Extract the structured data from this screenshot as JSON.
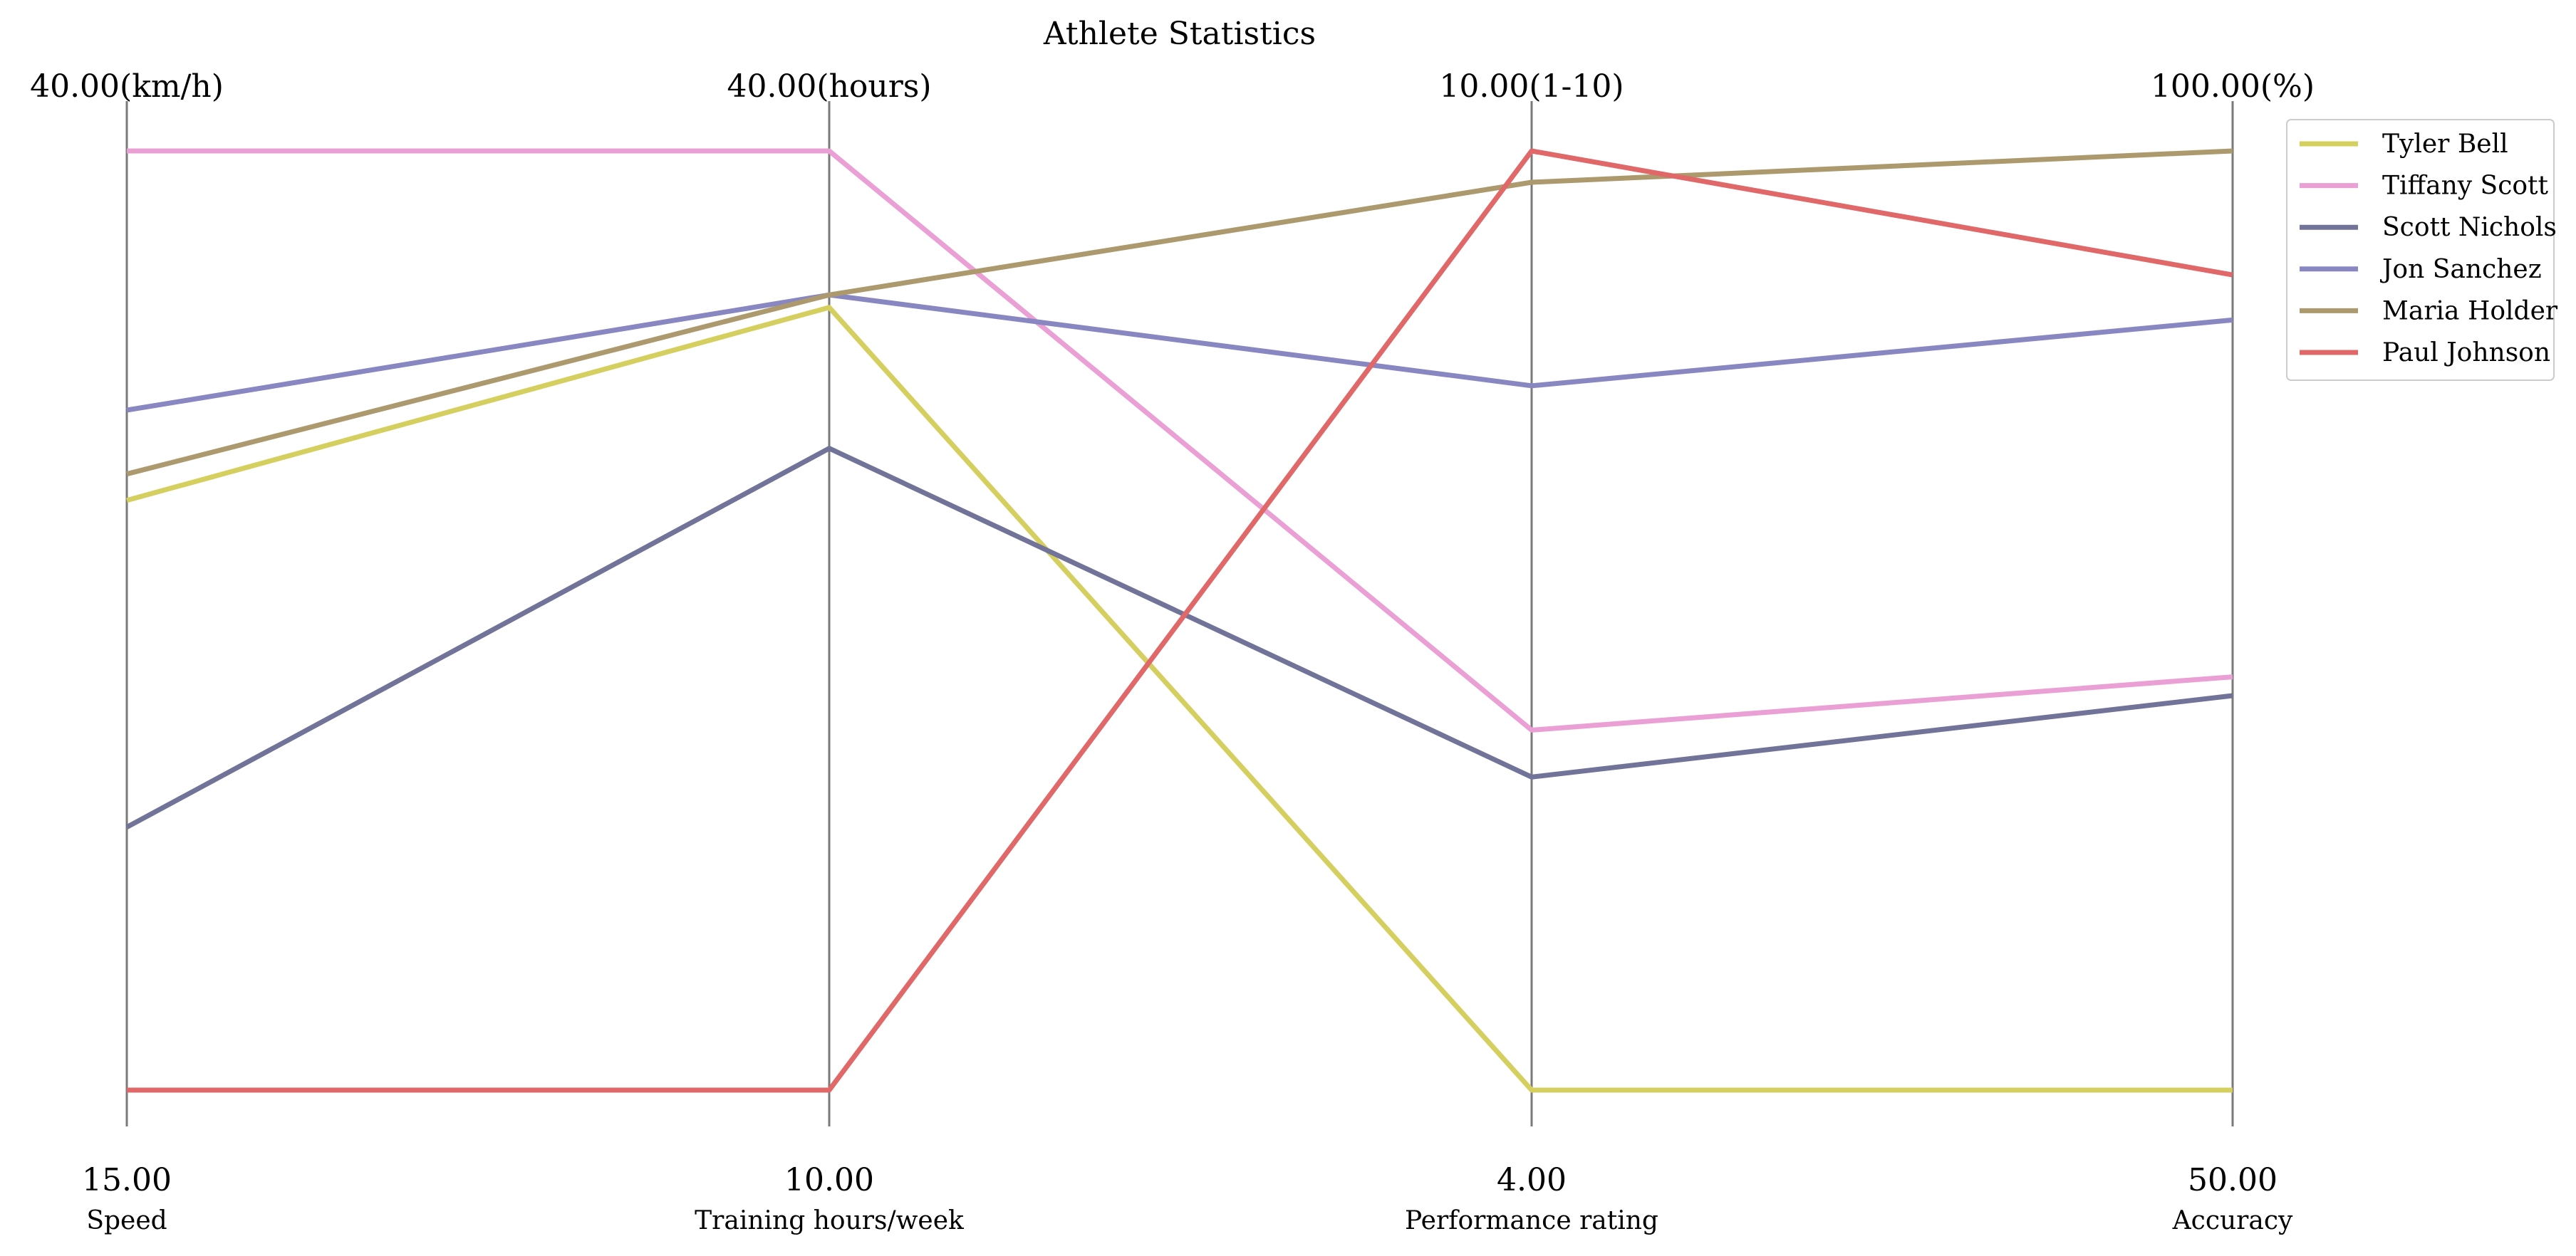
{
  "chart_data": {
    "type": "parallel-coordinates",
    "title": "Athlete Statistics",
    "grid": false,
    "legend_position": "top-right",
    "axes": [
      {
        "name": "Speed",
        "min": 15.0,
        "max": 40.0,
        "min_label": "15.00",
        "max_label": "40.00(km/h)"
      },
      {
        "name": "Training hours/week",
        "min": 10.0,
        "max": 40.0,
        "min_label": "10.00",
        "max_label": "40.00(hours)"
      },
      {
        "name": "Performance rating",
        "min": 4.0,
        "max": 10.0,
        "min_label": "4.00",
        "max_label": "10.00(1-10)"
      },
      {
        "name": "Accuracy",
        "min": 50.0,
        "max": 100.0,
        "min_label": "50.00",
        "max_label": "100.00(%)"
      }
    ],
    "series": [
      {
        "name": "Tyler Bell",
        "color": "#d4cf5f",
        "values": [
          30.7,
          35.0,
          4.0,
          50.0
        ]
      },
      {
        "name": "Tiffany Scott",
        "color": "#eaa0d5",
        "values": [
          40.0,
          40.0,
          6.3,
          72.0
        ]
      },
      {
        "name": "Scott Nichols",
        "color": "#727399",
        "values": [
          22.0,
          30.5,
          6.0,
          71.0
        ]
      },
      {
        "name": "Jon Sanchez",
        "color": "#8887c2",
        "values": [
          33.1,
          35.4,
          8.5,
          91.0
        ]
      },
      {
        "name": "Maria Holder",
        "color": "#ac9a6e",
        "values": [
          31.4,
          35.4,
          9.8,
          100.0
        ]
      },
      {
        "name": "Paul Johnson",
        "color": "#e06869",
        "values": [
          15.0,
          10.0,
          10.0,
          93.4
        ]
      }
    ]
  }
}
